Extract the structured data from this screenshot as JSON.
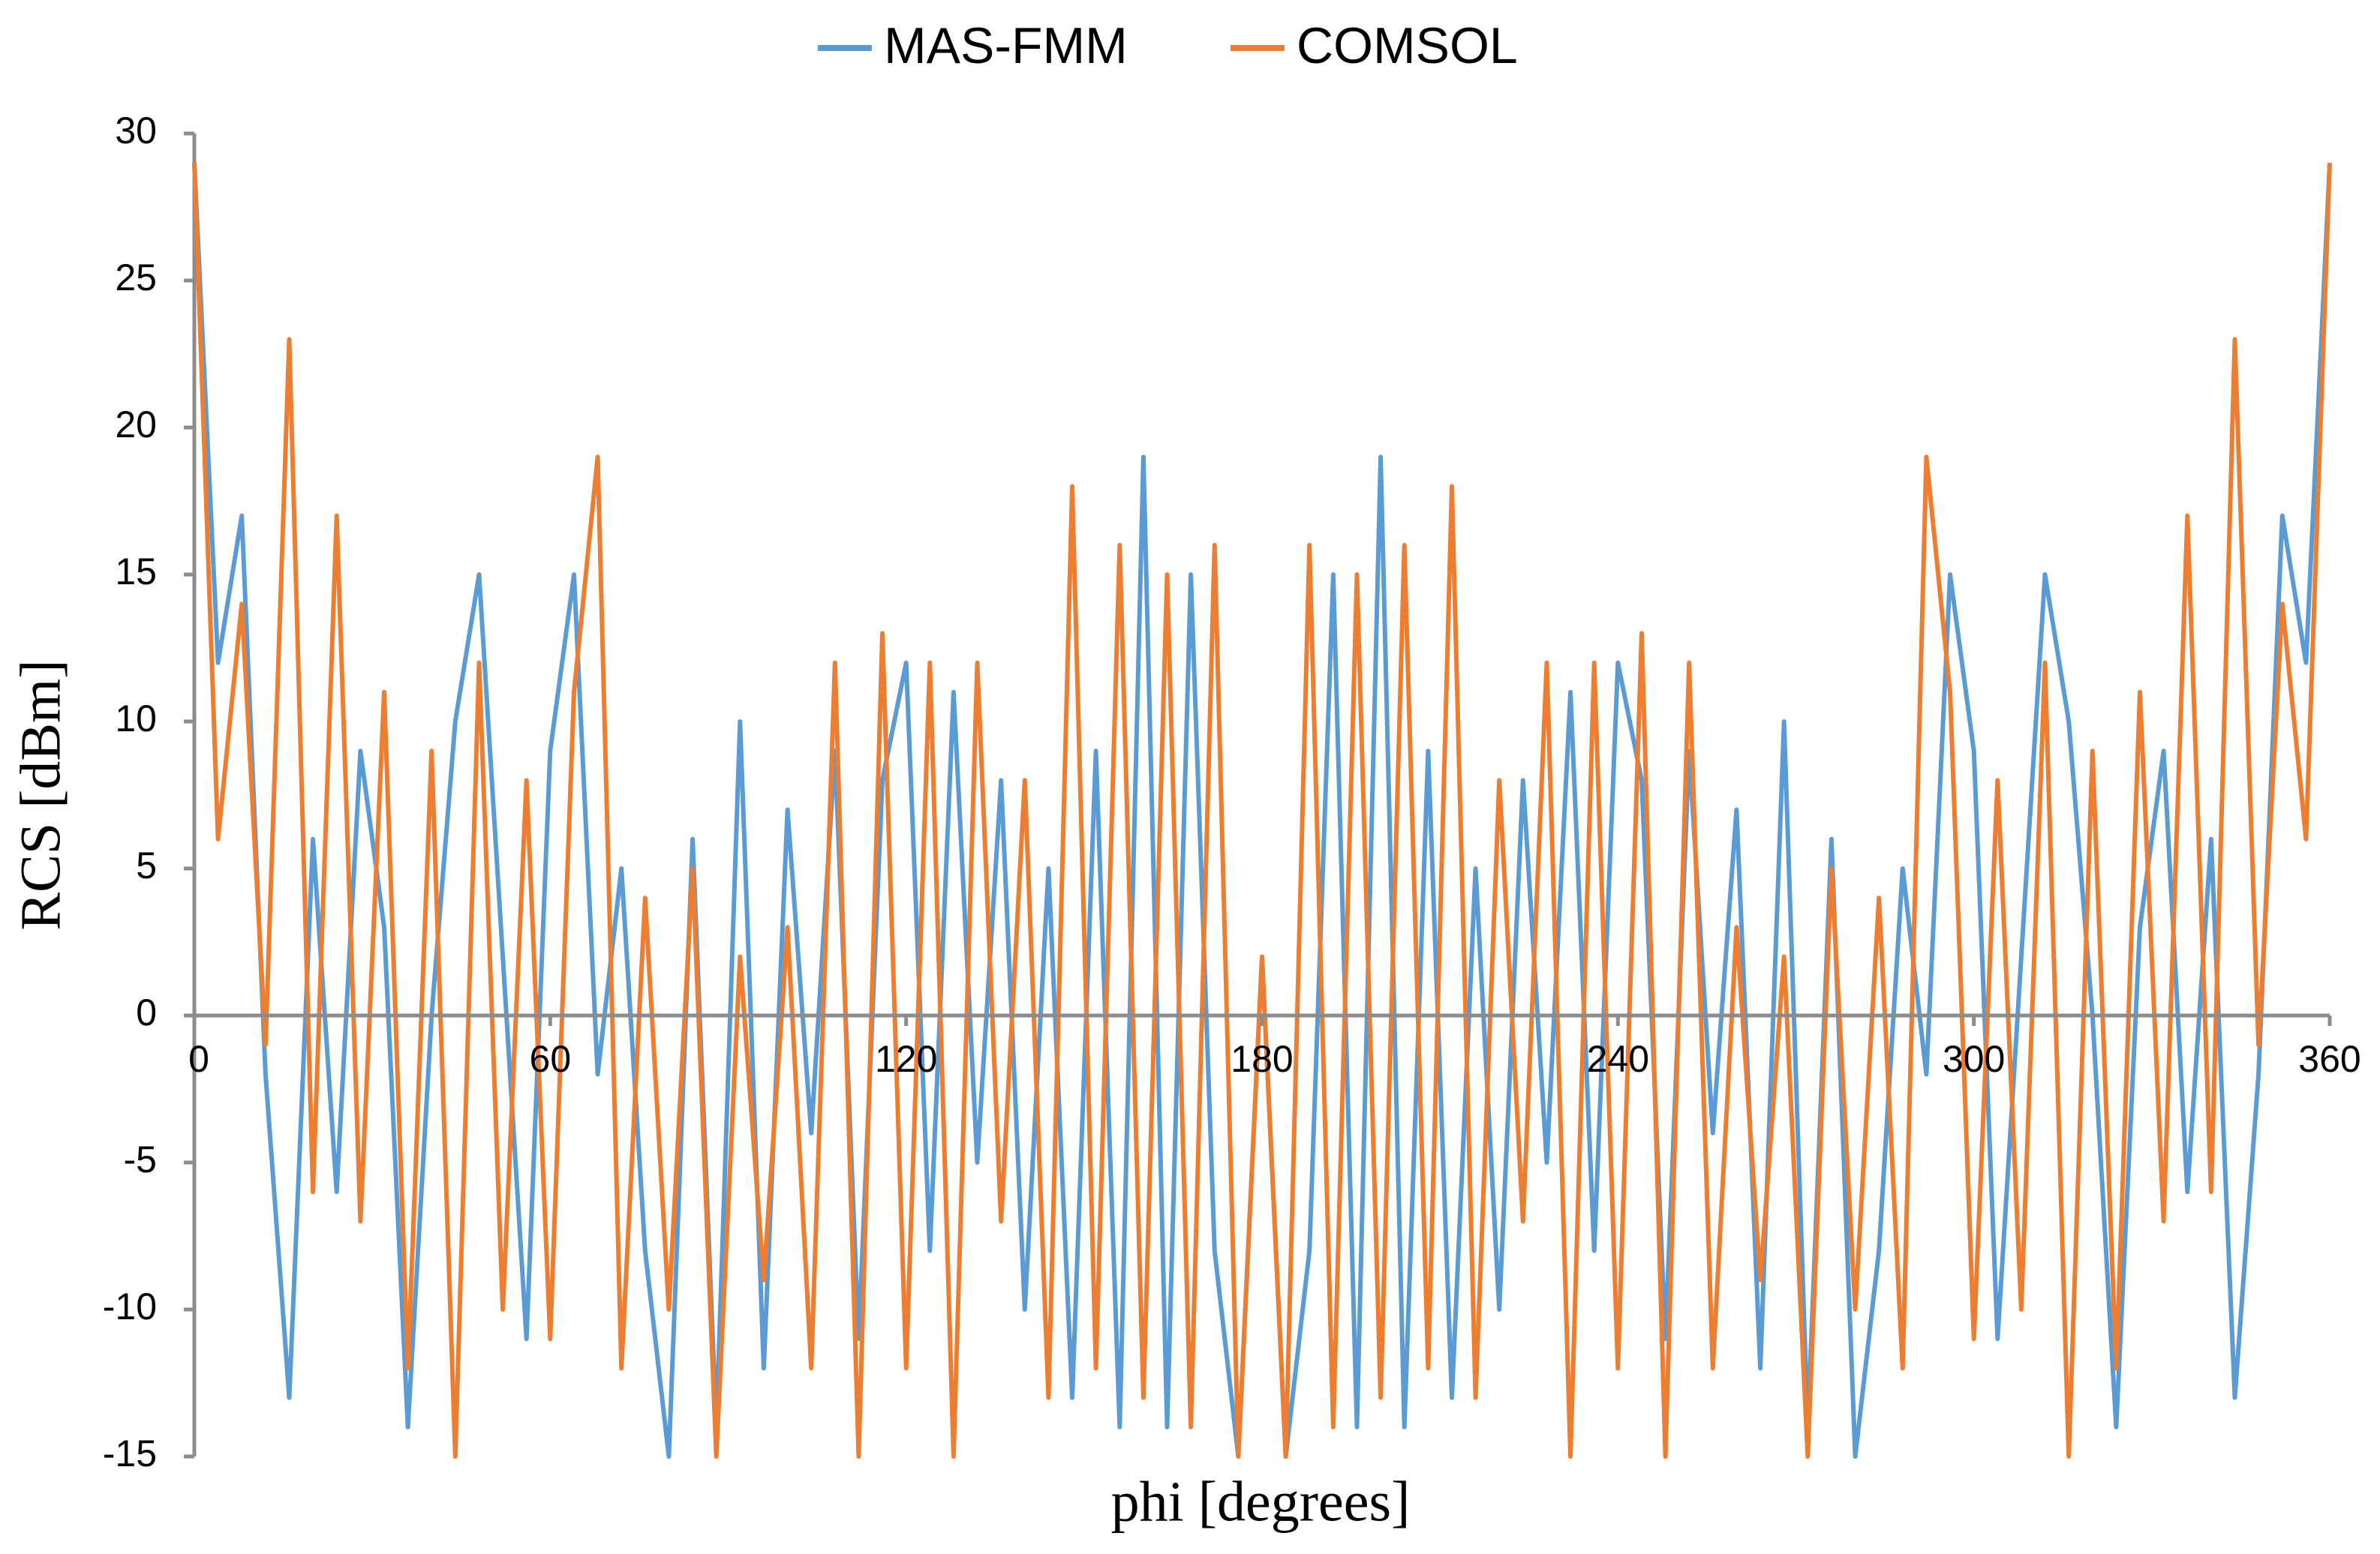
{
  "chart_data": {
    "type": "line",
    "xlabel": "phi [degrees]",
    "ylabel": "RCS [dBm]",
    "x": [
      0,
      4,
      8,
      12,
      16,
      20,
      24,
      28,
      32,
      36,
      40,
      44,
      48,
      52,
      56,
      60,
      64,
      68,
      72,
      76,
      80,
      84,
      88,
      92,
      96,
      100,
      104,
      108,
      112,
      116,
      120,
      124,
      128,
      132,
      136,
      140,
      144,
      148,
      152,
      156,
      160,
      164,
      168,
      172,
      176,
      180,
      184,
      188,
      192,
      196,
      200,
      204,
      208,
      212,
      216,
      220,
      224,
      228,
      232,
      236,
      240,
      244,
      248,
      252,
      256,
      260,
      264,
      268,
      272,
      276,
      280,
      284,
      288,
      292,
      296,
      300,
      304,
      308,
      312,
      316,
      320,
      324,
      328,
      332,
      336,
      340,
      344,
      348,
      352,
      356,
      360
    ],
    "series": [
      {
        "name": "MAS-FMM",
        "color": "#5b9bd5",
        "values": [
          29,
          12,
          17,
          -2,
          -13,
          6,
          -6,
          9,
          3,
          -14,
          0,
          10,
          15,
          2,
          -11,
          9,
          15,
          -2,
          5,
          -8,
          -15,
          6,
          -14,
          10,
          -12,
          7,
          -4,
          9,
          -11,
          8,
          12,
          -8,
          11,
          -5,
          8,
          -10,
          5,
          -13,
          9,
          -14,
          19,
          -14,
          15,
          -8,
          -15,
          2,
          -15,
          -8,
          15,
          -14,
          19,
          -14,
          9,
          -13,
          5,
          -10,
          8,
          -5,
          11,
          -8,
          12,
          8,
          -11,
          9,
          -4,
          7,
          -12,
          10,
          -14,
          6,
          -15,
          -8,
          5,
          -2,
          15,
          9,
          -11,
          2,
          15,
          10,
          0,
          -14,
          3,
          9,
          -6,
          6,
          -13,
          -2,
          17,
          12,
          29
        ]
      },
      {
        "name": "COMSOL",
        "color": "#ed7d31",
        "values": [
          29,
          6,
          14,
          -1,
          23,
          -6,
          17,
          -7,
          11,
          -12,
          9,
          -15,
          12,
          -10,
          8,
          -11,
          11,
          19,
          -12,
          4,
          -10,
          5,
          -15,
          2,
          -9,
          3,
          -12,
          12,
          -15,
          13,
          -12,
          12,
          -15,
          12,
          -7,
          8,
          -13,
          18,
          -12,
          16,
          -13,
          15,
          -14,
          16,
          -15,
          2,
          -15,
          16,
          -14,
          15,
          -13,
          16,
          -12,
          18,
          -13,
          8,
          -7,
          12,
          -15,
          12,
          -12,
          13,
          -15,
          12,
          -12,
          3,
          -9,
          2,
          -15,
          5,
          -10,
          4,
          -12,
          19,
          11,
          -11,
          8,
          -10,
          12,
          -15,
          9,
          -12,
          11,
          -7,
          17,
          -6,
          23,
          -1,
          14,
          6,
          29
        ]
      }
    ],
    "xlim": [
      0,
      360
    ],
    "xticks": [
      0,
      60,
      120,
      180,
      240,
      300,
      360
    ],
    "ylim": [
      -15,
      30
    ],
    "yticks": [
      -15,
      -10,
      -5,
      0,
      5,
      10,
      15,
      20,
      25,
      30
    ],
    "legend": "top"
  }
}
